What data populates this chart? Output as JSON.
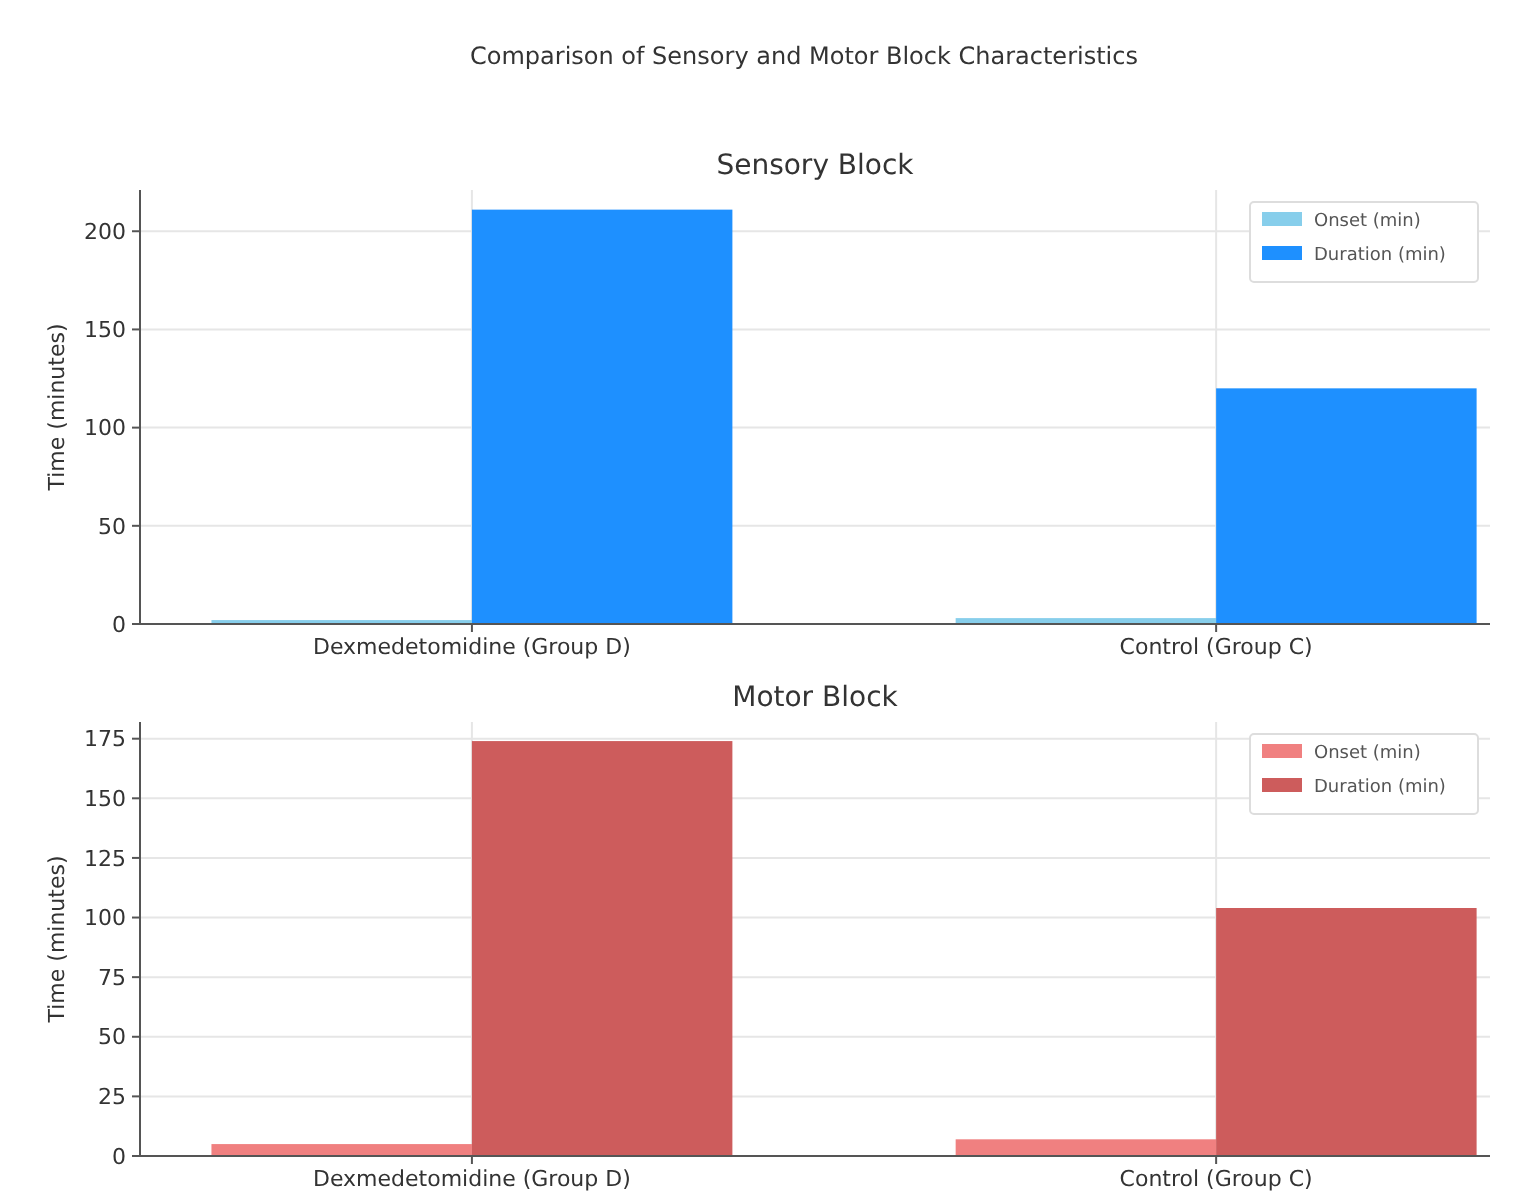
{
  "chart_data": [
    {
      "type": "bar",
      "title": "Comparison of Sensory and Motor Block Characteristics",
      "subtitle": "Sensory Block",
      "ylabel": "Time (minutes)",
      "categories": [
        "Dexmedetomidine (Group D)",
        "Control (Group C)"
      ],
      "series": [
        {
          "name": "Onset (min)",
          "color": "#87ceeb",
          "values": [
            2,
            3
          ]
        },
        {
          "name": "Duration (min)",
          "color": "#1e90ff",
          "values": [
            211,
            120
          ]
        }
      ],
      "ylim": [
        0,
        221
      ],
      "yticks": [
        0,
        50,
        100,
        150,
        200
      ],
      "grid": true,
      "legend": "top right"
    },
    {
      "type": "bar",
      "subtitle": "Motor Block",
      "ylabel": "Time (minutes)",
      "categories": [
        "Dexmedetomidine (Group D)",
        "Control (Group C)"
      ],
      "series": [
        {
          "name": "Onset (min)",
          "color": "#f08080",
          "values": [
            5,
            7
          ]
        },
        {
          "name": "Duration (min)",
          "color": "#cd5c5c",
          "values": [
            174,
            104
          ]
        }
      ],
      "ylim": [
        0,
        182
      ],
      "yticks": [
        0,
        25,
        50,
        75,
        100,
        125,
        150,
        175
      ],
      "grid": true,
      "legend": "top right"
    }
  ]
}
